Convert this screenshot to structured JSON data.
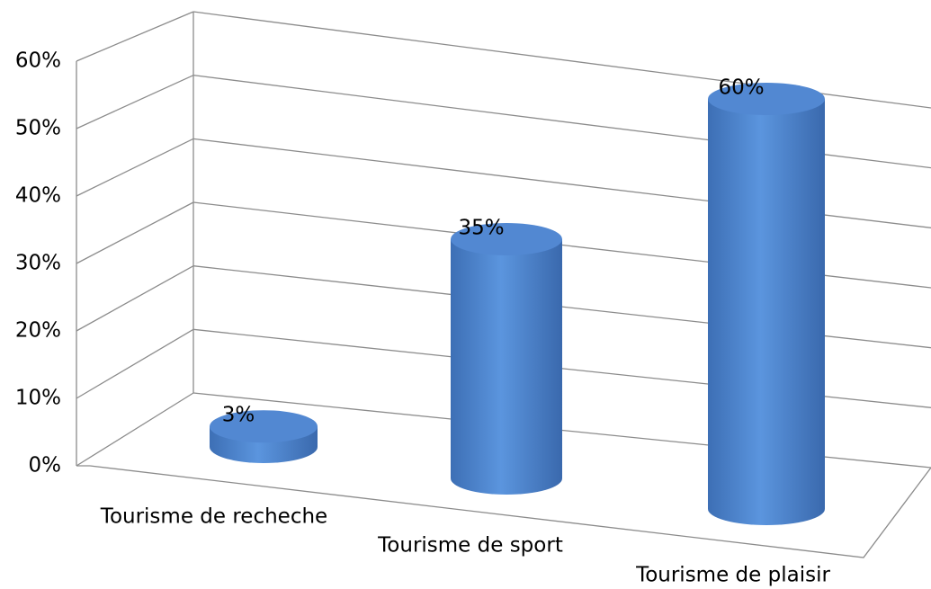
{
  "chart_data": {
    "type": "bar3d",
    "categories": [
      "Tourisme de recheche",
      "Tourisme de sport",
      "Tourisme de plaisir"
    ],
    "values": [
      3,
      35,
      60
    ],
    "value_labels": [
      "3%",
      "35%",
      "60%"
    ],
    "color": "#4f86cf",
    "ylim": [
      0,
      60
    ],
    "yticks": [
      {
        "value": 0,
        "label": "0%"
      },
      {
        "value": 10,
        "label": "10%"
      },
      {
        "value": 20,
        "label": "20%"
      },
      {
        "value": 30,
        "label": "30%"
      },
      {
        "value": 40,
        "label": "40%"
      },
      {
        "value": 50,
        "label": "50%"
      },
      {
        "value": 60,
        "label": "60%"
      }
    ],
    "grid": true
  }
}
